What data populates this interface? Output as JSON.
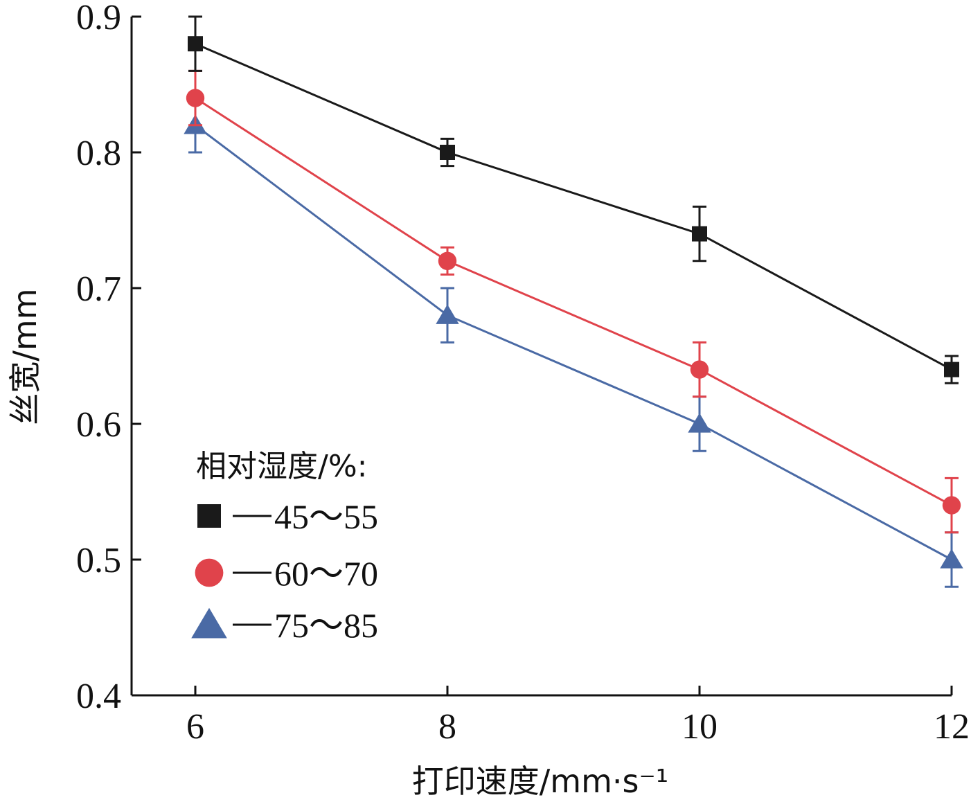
{
  "chart_data": {
    "type": "line",
    "x": [
      6,
      8,
      10,
      12
    ],
    "xlabel": "打印速度/mm·s⁻¹",
    "ylabel": "丝宽/mm",
    "xlim": [
      5.5,
      12
    ],
    "ylim": [
      0.4,
      0.9
    ],
    "xticks": [
      "6",
      "8",
      "10",
      "12"
    ],
    "yticks": [
      "0.4",
      "0.5",
      "0.6",
      "0.7",
      "0.8",
      "0.9"
    ],
    "grid": false,
    "legend": {
      "title": "相对湿度/%:",
      "placement": "bottom-left"
    },
    "series": [
      {
        "name": "45～55",
        "color": "#1a1a1a",
        "marker": "square",
        "values": [
          0.88,
          0.8,
          0.74,
          0.64
        ],
        "error": [
          0.02,
          0.01,
          0.02,
          0.01
        ]
      },
      {
        "name": "60～70",
        "color": "#e0434b",
        "marker": "circle",
        "values": [
          0.84,
          0.72,
          0.64,
          0.54
        ],
        "error": [
          0.02,
          0.01,
          0.02,
          0.02
        ]
      },
      {
        "name": "75～85",
        "color": "#4a6aa5",
        "marker": "triangle",
        "values": [
          0.82,
          0.68,
          0.6,
          0.5
        ],
        "error": [
          0.02,
          0.02,
          0.02,
          0.02
        ]
      }
    ]
  }
}
